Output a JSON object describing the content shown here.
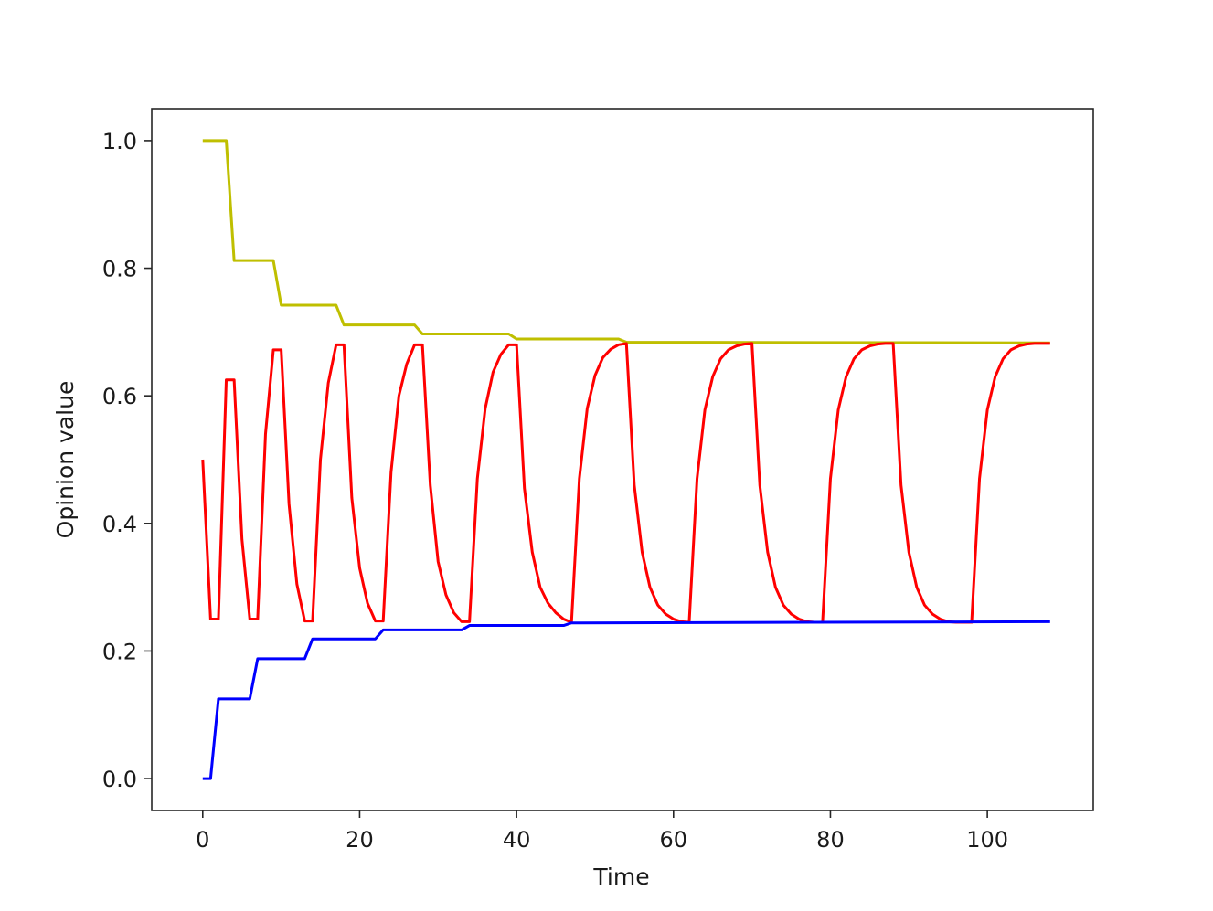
{
  "chart_data": {
    "type": "line",
    "title": "",
    "xlabel": "Time",
    "ylabel": "Opinion value",
    "xlim": [
      -6.5,
      113.5
    ],
    "ylim": [
      -0.05,
      1.05
    ],
    "xticks": [
      0,
      20,
      40,
      60,
      80,
      100
    ],
    "xtick_labels": [
      "0",
      "20",
      "40",
      "60",
      "80",
      "100"
    ],
    "yticks": [
      0.0,
      0.2,
      0.4,
      0.6,
      0.8,
      1.0
    ],
    "ytick_labels": [
      "0.0",
      "0.2",
      "0.4",
      "0.6",
      "0.8",
      "1.0"
    ],
    "grid": false,
    "legend": "none",
    "series": [
      {
        "color": "#bfbf00",
        "x": [
          0,
          3,
          4,
          9,
          10,
          17,
          18,
          27,
          28,
          39,
          40,
          53,
          54,
          108
        ],
        "y": [
          1.0,
          1.0,
          0.812,
          0.812,
          0.742,
          0.742,
          0.711,
          0.711,
          0.697,
          0.697,
          0.689,
          0.689,
          0.684,
          0.683
        ]
      },
      {
        "color": "#ff0000",
        "x": [
          0,
          1,
          2,
          3,
          4,
          5,
          6,
          7,
          8,
          9,
          10,
          11,
          12,
          13,
          14,
          15,
          16,
          17,
          18,
          19,
          20,
          21,
          22,
          23,
          24,
          25,
          26,
          27,
          28,
          29,
          30,
          31,
          32,
          33,
          34,
          35,
          36,
          37,
          38,
          39,
          40,
          41,
          42,
          43,
          44,
          45,
          46,
          47,
          48,
          49,
          50,
          51,
          52,
          53,
          54,
          55,
          56,
          57,
          58,
          59,
          60,
          61,
          62,
          63,
          64,
          65,
          66,
          67,
          68,
          69,
          70,
          71,
          72,
          73,
          74,
          75,
          76,
          77,
          78,
          79,
          80,
          81,
          82,
          83,
          84,
          85,
          86,
          87,
          88,
          89,
          90,
          91,
          92,
          93,
          94,
          95,
          96,
          97,
          98,
          99,
          100,
          101,
          102,
          103,
          104,
          105,
          106,
          107,
          108
        ],
        "y": [
          0.5,
          0.25,
          0.25,
          0.625,
          0.625,
          0.375,
          0.25,
          0.25,
          0.54,
          0.672,
          0.672,
          0.43,
          0.305,
          0.247,
          0.247,
          0.5,
          0.62,
          0.68,
          0.68,
          0.44,
          0.33,
          0.275,
          0.247,
          0.247,
          0.48,
          0.6,
          0.65,
          0.68,
          0.68,
          0.46,
          0.34,
          0.288,
          0.26,
          0.246,
          0.246,
          0.47,
          0.58,
          0.637,
          0.665,
          0.68,
          0.68,
          0.455,
          0.355,
          0.3,
          0.275,
          0.26,
          0.25,
          0.245,
          0.47,
          0.58,
          0.632,
          0.66,
          0.673,
          0.68,
          0.682,
          0.46,
          0.355,
          0.3,
          0.272,
          0.258,
          0.25,
          0.246,
          0.245,
          0.47,
          0.578,
          0.63,
          0.658,
          0.672,
          0.678,
          0.681,
          0.682,
          0.46,
          0.355,
          0.3,
          0.272,
          0.258,
          0.25,
          0.246,
          0.245,
          0.245,
          0.47,
          0.578,
          0.63,
          0.658,
          0.672,
          0.678,
          0.681,
          0.682,
          0.682,
          0.46,
          0.355,
          0.3,
          0.272,
          0.258,
          0.25,
          0.246,
          0.245,
          0.245,
          0.245,
          0.47,
          0.578,
          0.63,
          0.658,
          0.672,
          0.678,
          0.681,
          0.682,
          0.682,
          0.682
        ]
      },
      {
        "color": "#0000ff",
        "x": [
          0,
          1,
          2,
          6,
          7,
          13,
          14,
          22,
          23,
          33,
          34,
          46,
          47,
          108
        ],
        "y": [
          0.0,
          0.0,
          0.125,
          0.125,
          0.188,
          0.188,
          0.219,
          0.219,
          0.233,
          0.233,
          0.24,
          0.24,
          0.244,
          0.246
        ]
      }
    ]
  }
}
